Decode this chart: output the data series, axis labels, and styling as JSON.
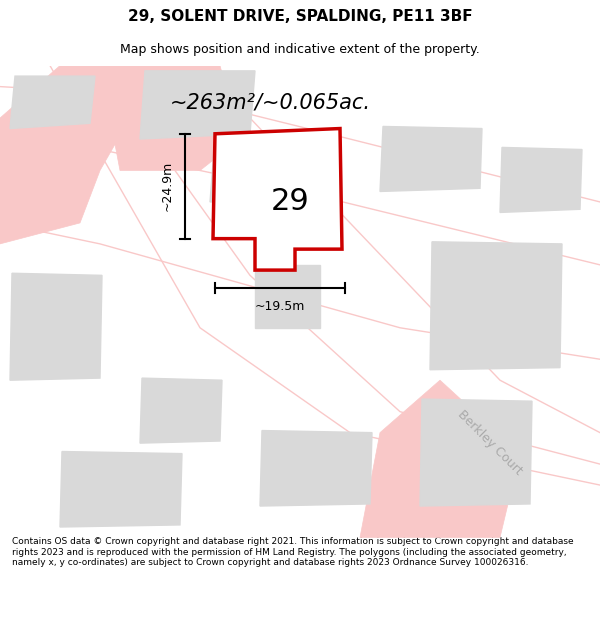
{
  "title": "29, SOLENT DRIVE, SPALDING, PE11 3BF",
  "subtitle": "Map shows position and indicative extent of the property.",
  "area_text": "~263m²/~0.065ac.",
  "number_label": "29",
  "dim_vertical": "~24.9m",
  "dim_horizontal": "~19.5m",
  "street_label": "Berkley Court",
  "footer": "Contains OS data © Crown copyright and database right 2021. This information is subject to Crown copyright and database rights 2023 and is reproduced with the permission of HM Land Registry. The polygons (including the associated geometry, namely x, y co-ordinates) are subject to Crown copyright and database rights 2023 Ordnance Survey 100026316.",
  "background_color": "#ffffff",
  "map_bg": "#f5f5f5",
  "road_color": "#f9c8c8",
  "building_color": "#d9d9d9",
  "plot_outline_color": "#cc0000",
  "plot_fill_color": "#ffffff",
  "dim_line_color": "#000000",
  "figsize": [
    6.0,
    6.25
  ],
  "dpi": 100
}
